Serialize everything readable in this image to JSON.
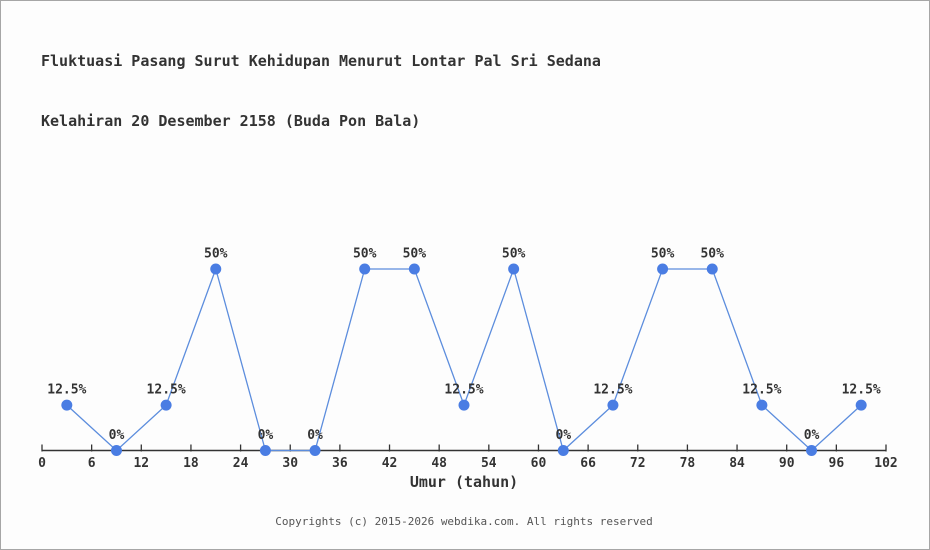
{
  "title": {
    "line1": "Fluktuasi Pasang Surut Kehidupan Menurut Lontar Pal Sri Sedana",
    "line2": "Kelahiran 20 Desember 2158 (Buda Pon Bala)"
  },
  "chart_data": {
    "type": "line",
    "x": [
      3,
      9,
      15,
      21,
      27,
      33,
      39,
      45,
      51,
      57,
      63,
      69,
      75,
      81,
      87,
      93,
      99
    ],
    "values": [
      12.5,
      0,
      12.5,
      50,
      0,
      0,
      50,
      50,
      12.5,
      50,
      0,
      12.5,
      50,
      50,
      12.5,
      0,
      12.5
    ],
    "point_labels": [
      "12.5%",
      "0%",
      "12.5%",
      "50%",
      "0%",
      "0%",
      "50%",
      "50%",
      "12.5%",
      "50%",
      "0%",
      "12.5%",
      "50%",
      "50%",
      "12.5%",
      "0%",
      "12.5%"
    ],
    "xlabel": "Umur (tahun)",
    "x_ticks": [
      0,
      6,
      12,
      18,
      24,
      30,
      36,
      42,
      48,
      54,
      60,
      66,
      72,
      78,
      84,
      90,
      96,
      102
    ],
    "xlim": [
      0,
      102
    ],
    "ylim": [
      0,
      55
    ],
    "grid": false,
    "legend": "none",
    "colors": {
      "line": "#5c8ddd",
      "point": "#4a7de3",
      "axis": "#333333",
      "text": "#333333",
      "footer_text": "#555555",
      "background": "#fdfdfd",
      "border": "#a6a6a6"
    }
  },
  "footer": {
    "copyright": "Copyrights (c) 2015-2026 webdika.com. All rights reserved"
  }
}
